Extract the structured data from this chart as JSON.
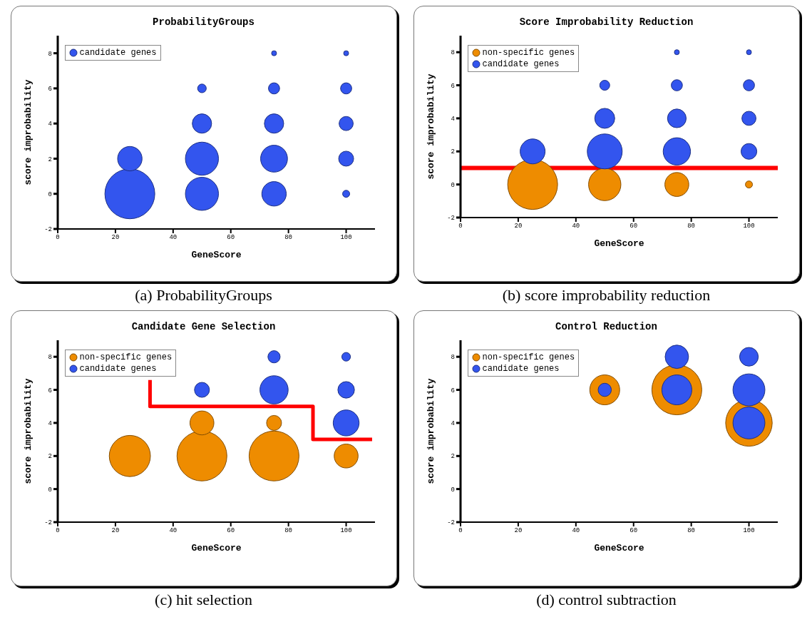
{
  "chart_data": [
    {
      "type": "bubble",
      "title": "ProbabilityGroups",
      "xlabel": "GeneScore",
      "ylabel": "score improbability",
      "xlim": [
        0,
        110
      ],
      "xticks": [
        0,
        20,
        40,
        60,
        80,
        100
      ],
      "ylim": [
        -2,
        9
      ],
      "yticks": [
        -2,
        0,
        2,
        4,
        6,
        8
      ],
      "legend": "top left",
      "annotations": [
        "(a) ProbabilityGroups"
      ],
      "series": [
        {
          "name": "candidate genes",
          "color": "#3355ee",
          "x": [
            25,
            25,
            50,
            50,
            50,
            50,
            75,
            75,
            75,
            75,
            75,
            100,
            100,
            100,
            100,
            100
          ],
          "values": [
            0,
            2,
            0,
            2,
            4,
            6,
            0,
            2,
            4,
            6,
            8,
            0,
            2,
            4,
            6,
            8
          ],
          "sizes": [
            1,
            0.24,
            0.44,
            0.44,
            0.15,
            0.03,
            0.24,
            0.29,
            0.15,
            0.05,
            0.01,
            0.02,
            0.09,
            0.08,
            0.05,
            0.01
          ]
        }
      ]
    },
    {
      "type": "bubble",
      "title": "Score Improbability Reduction",
      "xlabel": "GeneScore",
      "ylabel": "score improbability",
      "xlim": [
        0,
        110
      ],
      "xticks": [
        0,
        20,
        40,
        60,
        80,
        100
      ],
      "ylim": [
        -2,
        9
      ],
      "yticks": [
        -2,
        0,
        2,
        4,
        6,
        8
      ],
      "legend": "top left",
      "annotations": [
        "(b) score improbability reduction"
      ],
      "ref_lines": [
        {
          "axis": "y",
          "value": 1,
          "color": "#ff0000"
        }
      ],
      "series": [
        {
          "name": "non-specific genes",
          "color": "#ee8c00",
          "x": [
            25,
            50,
            75,
            100
          ],
          "values": [
            0,
            0,
            0,
            0
          ],
          "sizes": [
            1,
            0.42,
            0.23,
            0.02
          ]
        },
        {
          "name": "candidate genes",
          "color": "#3355ee",
          "x": [
            25,
            50,
            50,
            50,
            75,
            75,
            75,
            75,
            100,
            100,
            100,
            100
          ],
          "values": [
            2,
            2,
            4,
            6,
            2,
            4,
            6,
            8,
            2,
            4,
            6,
            8
          ],
          "sizes": [
            0.25,
            0.49,
            0.16,
            0.04,
            0.3,
            0.14,
            0.05,
            0.01,
            0.1,
            0.08,
            0.05,
            0.01
          ]
        }
      ]
    },
    {
      "type": "bubble",
      "title": "Candidate Gene Selection",
      "xlabel": "GeneScore",
      "ylabel": "score improbability",
      "xlim": [
        0,
        110
      ],
      "xticks": [
        0,
        20,
        40,
        60,
        80,
        100
      ],
      "ylim": [
        -2,
        9
      ],
      "yticks": [
        -2,
        0,
        2,
        4,
        6,
        8
      ],
      "legend": "top left",
      "annotations": [
        "(c) hit selection"
      ],
      "series": [
        {
          "name": "non-specific genes",
          "color": "#ee8c00",
          "x": [
            25,
            50,
            75,
            100,
            50,
            75
          ],
          "values": [
            2,
            2,
            2,
            2,
            4,
            4
          ],
          "sizes": [
            0.68,
            1,
            1,
            0.23,
            0.23,
            0.09
          ]
        },
        {
          "name": "candidate genes",
          "color": "#3355ee",
          "x": [
            50,
            75,
            75,
            100,
            100,
            100
          ],
          "values": [
            6,
            6,
            8,
            4,
            6,
            8
          ],
          "sizes": [
            0.09,
            0.32,
            0.06,
            0.27,
            0.11,
            0.03
          ]
        },
        {
          "type": "line",
          "color": "#ff0000",
          "x": [
            32,
            32,
            88.5,
            88.5,
            109
          ],
          "values": [
            6.6,
            5,
            5,
            3,
            3
          ]
        }
      ]
    },
    {
      "type": "bubble",
      "title": "Control Reduction",
      "xlabel": "GeneScore",
      "ylabel": "score improbability",
      "xlim": [
        0,
        110
      ],
      "xticks": [
        0,
        20,
        40,
        60,
        80,
        100
      ],
      "ylim": [
        -2,
        9
      ],
      "yticks": [
        -2,
        0,
        2,
        4,
        6,
        8
      ],
      "legend": "top left",
      "annotations": [
        "(d) control subtraction"
      ],
      "series": [
        {
          "name": "non-specific genes",
          "color": "#ee8c00",
          "x": [
            50,
            75,
            100
          ],
          "values": [
            6,
            6,
            4
          ],
          "sizes": [
            0.36,
            1,
            0.87
          ]
        },
        {
          "name": "candidate genes",
          "color": "#3355ee",
          "x": [
            50,
            75,
            75,
            100,
            100,
            100
          ],
          "values": [
            6,
            6,
            8,
            4,
            6,
            8
          ],
          "sizes": [
            0.07,
            0.36,
            0.22,
            0.41,
            0.41,
            0.14
          ]
        }
      ]
    }
  ]
}
